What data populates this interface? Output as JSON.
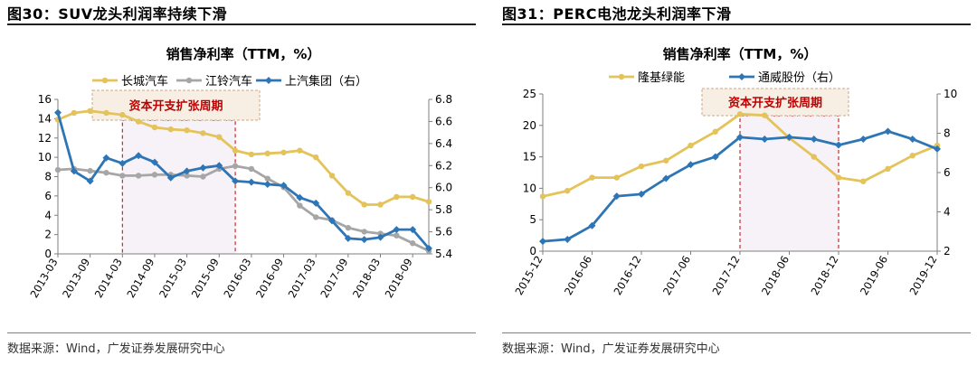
{
  "left_panel": {
    "figure_title": "图30：SUV龙头利润率持续下滑",
    "source": "数据来源：Wind，广发证券发展研究中心"
  },
  "right_panel": {
    "figure_title": "图31：PERC电池龙头利润率下滑",
    "source": "数据来源：Wind，广发证券发展研究中心"
  },
  "colors": {
    "gold": "#E3C35A",
    "gray": "#A6A6A6",
    "blue": "#2E75B6",
    "annotation_red": "#C00000",
    "shade": "#F7F2F7",
    "annotation_fill": "#F8EFE4"
  },
  "chart_data": [
    {
      "type": "line",
      "title": "销售净利率（TTM，%）",
      "annotation": "资本开支扩张周期",
      "shaded_period": [
        "2014-03",
        "2015-12"
      ],
      "legend": [
        "长城汽车",
        "江铃汽车",
        "上汽集团（右）"
      ],
      "legend_position": "top",
      "x_ticks": [
        "2013-03",
        "2013-09",
        "2014-03",
        "2014-09",
        "2015-03",
        "2015-09",
        "2016-03",
        "2016-09",
        "2017-03",
        "2017-09",
        "2018-03",
        "2018-09"
      ],
      "x": [
        "2013-03",
        "2013-06",
        "2013-09",
        "2013-12",
        "2014-03",
        "2014-06",
        "2014-09",
        "2014-12",
        "2015-03",
        "2015-06",
        "2015-09",
        "2015-12",
        "2016-03",
        "2016-06",
        "2016-09",
        "2016-12",
        "2017-03",
        "2017-06",
        "2017-09",
        "2017-12",
        "2018-03",
        "2018-06",
        "2018-09",
        "2018-12"
      ],
      "y_left_lim": [
        0,
        16
      ],
      "y_left_ticks": [
        0,
        2,
        4,
        6,
        8,
        10,
        12,
        14,
        16
      ],
      "y_right_lim": [
        5.4,
        6.8
      ],
      "y_right_ticks": [
        5.4,
        5.6,
        5.8,
        6.0,
        6.2,
        6.4,
        6.6,
        6.8
      ],
      "series": [
        {
          "name": "长城汽车",
          "axis": "left",
          "color": "#E3C35A",
          "values": [
            13.9,
            14.6,
            14.8,
            14.6,
            14.4,
            13.7,
            13.1,
            12.9,
            12.8,
            12.5,
            12.1,
            10.7,
            10.3,
            10.4,
            10.5,
            10.7,
            10.0,
            8.1,
            6.3,
            5.1,
            5.1,
            5.9,
            5.9,
            5.4
          ]
        },
        {
          "name": "江铃汽车",
          "axis": "left",
          "color": "#A6A6A6",
          "values": [
            8.7,
            8.8,
            8.6,
            8.4,
            8.1,
            8.1,
            8.2,
            8.2,
            8.1,
            8.0,
            8.8,
            9.1,
            8.8,
            7.8,
            6.9,
            5.0,
            3.8,
            3.5,
            2.7,
            2.3,
            2.1,
            1.9,
            1.1,
            0.3
          ]
        },
        {
          "name": "上汽集团（右）",
          "axis": "right",
          "color": "#2E75B6",
          "values": [
            6.68,
            6.15,
            6.06,
            6.27,
            6.22,
            6.29,
            6.23,
            6.09,
            6.15,
            6.18,
            6.2,
            6.06,
            6.05,
            6.03,
            6.02,
            5.91,
            5.86,
            5.7,
            5.54,
            5.53,
            5.55,
            5.62,
            5.62,
            5.45
          ]
        }
      ]
    },
    {
      "type": "line",
      "title": "销售净利率（TTM，%）",
      "annotation": "资本开支扩张周期",
      "shaded_period": [
        "2017-12",
        "2018-12"
      ],
      "legend": [
        "隆基绿能",
        "通威股份（右）"
      ],
      "legend_position": "top",
      "x_ticks": [
        "2015-12",
        "2016-06",
        "2016-12",
        "2017-06",
        "2017-12",
        "2018-06",
        "2018-12",
        "2019-06",
        "2019-12"
      ],
      "x": [
        "2015-12",
        "2016-03",
        "2016-06",
        "2016-09",
        "2016-12",
        "2017-03",
        "2017-06",
        "2017-09",
        "2017-12",
        "2018-03",
        "2018-06",
        "2018-09",
        "2018-12",
        "2019-03",
        "2019-06",
        "2019-09",
        "2019-12"
      ],
      "y_left_lim": [
        0,
        25
      ],
      "y_left_ticks": [
        0,
        5,
        10,
        15,
        20,
        25
      ],
      "y_right_lim": [
        2,
        10
      ],
      "y_right_ticks": [
        2,
        4,
        6,
        8,
        10
      ],
      "series": [
        {
          "name": "隆基绿能",
          "axis": "left",
          "color": "#E3C35A",
          "values": [
            8.7,
            9.6,
            11.7,
            11.7,
            13.5,
            14.4,
            16.8,
            19.0,
            21.8,
            21.6,
            18.0,
            15.0,
            11.7,
            11.1,
            13.1,
            15.2,
            16.8
          ]
        },
        {
          "name": "通威股份（右）",
          "axis": "right",
          "color": "#2E75B6",
          "values": [
            2.5,
            2.6,
            3.3,
            4.8,
            4.9,
            5.7,
            6.4,
            6.8,
            7.8,
            7.7,
            7.8,
            7.7,
            7.4,
            7.7,
            8.1,
            7.7,
            7.2
          ]
        }
      ]
    }
  ]
}
